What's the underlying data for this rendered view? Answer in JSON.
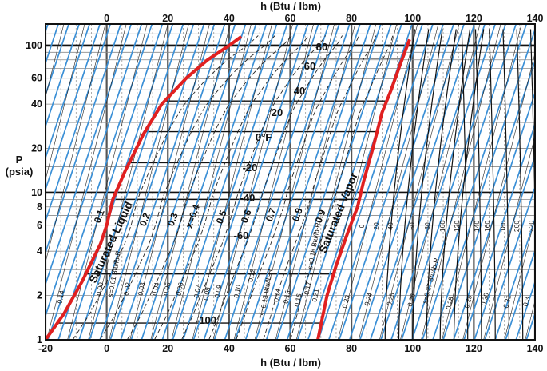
{
  "chart_data": {
    "type": "line",
    "title": "",
    "xlabel_top": "h (Btu / lbm)",
    "xlabel_bottom": "h (Btu / lbm)",
    "ylabel": [
      "P",
      "(psia)"
    ],
    "x_axis": {
      "min": -20,
      "max": 140,
      "ticks_bottom": [
        -20,
        0,
        20,
        40,
        60,
        80,
        100,
        120,
        140
      ],
      "ticks_top": [
        0,
        20,
        40,
        60,
        80,
        100,
        120,
        140
      ]
    },
    "y_axis": {
      "scale": "log",
      "min": 1,
      "max": 140,
      "ticks": [
        1,
        2,
        4,
        6,
        8,
        10,
        20,
        40,
        60,
        100
      ]
    },
    "grid": true,
    "series": [
      {
        "name": "Saturated liquid",
        "color": "#e02020",
        "points": [
          [
            -20,
            1
          ],
          [
            -14,
            1.5
          ],
          [
            -8,
            2.5
          ],
          [
            -2,
            4.5
          ],
          [
            0,
            6
          ],
          [
            2,
            9
          ],
          [
            6,
            14
          ],
          [
            12,
            25
          ],
          [
            18,
            40
          ],
          [
            26,
            60
          ],
          [
            33,
            80
          ],
          [
            40,
            100
          ],
          [
            44,
            115
          ]
        ]
      },
      {
        "name": "Saturated vapor",
        "color": "#e02020",
        "points": [
          [
            69,
            1
          ],
          [
            72,
            2
          ],
          [
            75,
            3.2
          ],
          [
            79,
            5.5
          ],
          [
            82,
            8
          ],
          [
            84,
            12
          ],
          [
            87,
            20
          ],
          [
            90,
            35
          ],
          [
            93,
            50
          ],
          [
            96,
            75
          ],
          [
            99,
            110
          ]
        ]
      }
    ],
    "annotations": {
      "saturated_liquid": "Saturated Liquid",
      "saturated_vapor": "Saturated Vapor",
      "temperatures": [
        "80",
        "60",
        "40",
        "20",
        "0°F",
        "-20",
        "-40",
        "-60",
        "-100"
      ],
      "qualities": [
        "0.1",
        "0.2",
        "0.3",
        "x=0.4",
        "0.5",
        "0.6",
        "0.7",
        "0.8",
        "0.9"
      ],
      "entropy_liquid": [
        "0.00",
        "s=0.01 Btu/lb-R",
        "0.02",
        "0.03",
        "0.04",
        "0.05",
        "0.06",
        "0.07",
        "0.08",
        "0.09",
        "0.10",
        "0.12",
        "s=0.13 Btu/lb-R",
        "0.14",
        "0.15",
        "0.16",
        "0.17",
        "s=0.18 Btu/lb-R",
        "0.21"
      ],
      "entropy_vapor": [
        "0.23",
        "0.24",
        "0.25",
        "0.26",
        "s=0.27 Btu/lb-R",
        "0.28",
        "0.29",
        "0.30",
        "0.31",
        "0.3"
      ],
      "superheated_temps": [
        "0",
        "20",
        "40",
        "60",
        "80",
        "100",
        "120",
        "140",
        "160",
        "180",
        "200",
        "220"
      ],
      "left_entropy": "0.14"
    }
  }
}
